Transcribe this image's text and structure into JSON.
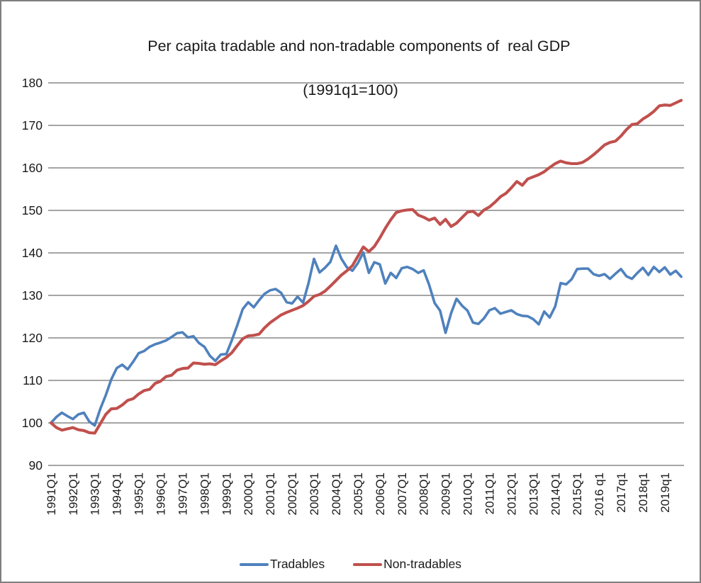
{
  "chart_data": {
    "type": "line",
    "title": "Per capita tradable and non-tradable components of  real GDP",
    "subtitle": "(1991q1=100)",
    "grid": "horizontal",
    "legend_position": "bottom",
    "ylim": [
      90,
      180
    ],
    "y_ticks": [
      90,
      100,
      110,
      120,
      130,
      140,
      150,
      160,
      170,
      180
    ],
    "x_tick_labels": [
      "1991Q1",
      "1992Q1",
      "1993Q1",
      "1994Q1",
      "1995Q1",
      "1996Q1",
      "1997Q1",
      "1998Q1",
      "1999Q1",
      "2000Q1",
      "2001Q1",
      "2002Q1",
      "2003Q1",
      "2004Q1",
      "2005Q1",
      "2006Q1",
      "2007Q1",
      "2008Q1",
      "2009Q1",
      "2010Q1",
      "2011Q1",
      "2012Q1",
      "2013Q1",
      "2014Q1",
      "2015Q1",
      "2016 q1",
      "2017q1",
      "2018q1",
      "2019q1"
    ],
    "x_tick_every_n_points": 4,
    "x_unit": "quarter",
    "x_range_shown": "1991Q1 to 2019Q4 quarterly (116 points)",
    "series": [
      {
        "name": "Tradables",
        "color": "#4F81BD",
        "values": [
          100.0,
          101.4,
          102.4,
          101.6,
          100.9,
          102.0,
          102.4,
          100.3,
          99.4,
          103.3,
          106.5,
          110.2,
          112.9,
          113.7,
          112.6,
          114.4,
          116.4,
          116.9,
          117.9,
          118.5,
          118.9,
          119.4,
          120.2,
          121.1,
          121.3,
          120.1,
          120.4,
          118.8,
          117.9,
          115.8,
          114.6,
          116.1,
          116.2,
          119.4,
          123.0,
          126.8,
          128.4,
          127.2,
          128.9,
          130.4,
          131.2,
          131.5,
          130.6,
          128.4,
          128.1,
          129.7,
          128.3,
          132.9,
          138.6,
          135.4,
          136.5,
          137.9,
          141.7,
          138.6,
          136.6,
          135.8,
          137.6,
          140.1,
          135.3,
          137.8,
          137.3,
          132.8,
          135.3,
          134.1,
          136.4,
          136.7,
          136.2,
          135.3,
          135.9,
          132.5,
          128.2,
          126.4,
          121.2,
          125.8,
          129.2,
          127.6,
          126.4,
          123.6,
          123.3,
          124.6,
          126.5,
          127.0,
          125.7,
          126.1,
          126.5,
          125.6,
          125.2,
          125.1,
          124.4,
          123.2,
          126.2,
          124.8,
          127.4,
          132.9,
          132.6,
          133.8,
          136.2,
          136.3,
          136.3,
          135.0,
          134.6,
          135.0,
          133.9,
          135.1,
          136.2,
          134.5,
          133.9,
          135.3,
          136.5,
          134.8,
          136.7,
          135.5,
          136.6,
          134.9,
          135.8,
          134.4
        ]
      },
      {
        "name": "Non-tradables",
        "color": "#C0504D",
        "values": [
          100.0,
          98.9,
          98.3,
          98.6,
          98.9,
          98.4,
          98.2,
          97.7,
          97.6,
          99.8,
          102.0,
          103.3,
          103.4,
          104.2,
          105.3,
          105.7,
          106.8,
          107.6,
          107.9,
          109.3,
          109.8,
          110.9,
          111.2,
          112.4,
          112.8,
          112.9,
          114.1,
          114.0,
          113.8,
          113.9,
          113.7,
          114.6,
          115.4,
          116.5,
          118.2,
          119.8,
          120.5,
          120.6,
          120.9,
          122.4,
          123.6,
          124.5,
          125.4,
          126.0,
          126.5,
          127.0,
          127.6,
          128.6,
          129.8,
          130.2,
          131.0,
          132.2,
          133.5,
          134.8,
          135.8,
          137.0,
          139.2,
          141.4,
          140.3,
          141.5,
          143.5,
          145.8,
          147.8,
          149.5,
          149.9,
          150.1,
          150.2,
          148.9,
          148.4,
          147.7,
          148.2,
          146.7,
          147.9,
          146.2,
          147.0,
          148.3,
          149.6,
          149.8,
          148.8,
          150.1,
          150.8,
          151.9,
          153.2,
          154.0,
          155.3,
          156.8,
          155.9,
          157.4,
          157.9,
          158.4,
          159.1,
          160.1,
          161.0,
          161.6,
          161.2,
          161.0,
          161.0,
          161.3,
          162.1,
          163.1,
          164.2,
          165.4,
          166.0,
          166.3,
          167.5,
          169.0,
          170.2,
          170.4,
          171.5,
          172.3,
          173.3,
          174.6,
          174.8,
          174.7,
          175.3,
          175.9
        ]
      }
    ],
    "style": {
      "gridline_color": "#878787",
      "text_color": "#1a1a1a",
      "background": "#ffffff",
      "border_color": "#7f7f7f"
    }
  }
}
